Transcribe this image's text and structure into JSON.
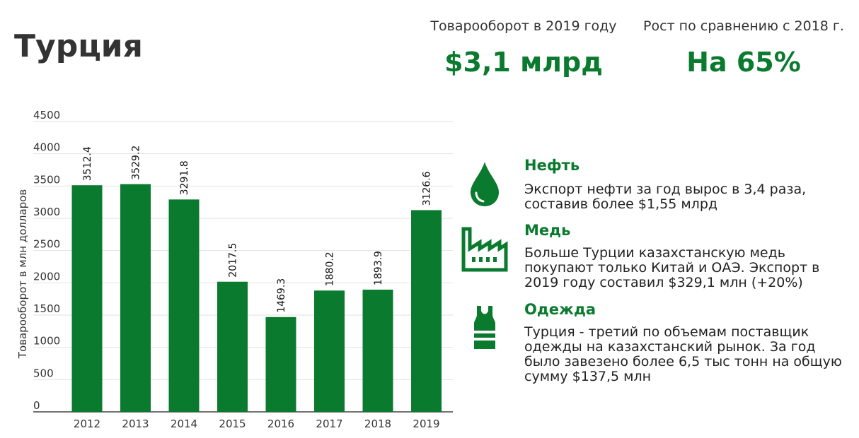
{
  "title": "Турция",
  "stats": [
    {
      "label": "Товарооборот в 2019 году",
      "value": "$3,1 млрд"
    },
    {
      "label": "Рост по сравнению с 2018 г.",
      "value": "На 65%"
    }
  ],
  "colors": {
    "accent": "#0a7a2e",
    "bar": "#0a7a2e"
  },
  "items": [
    {
      "icon": "oil-drop-icon",
      "title": "Нефть",
      "text": "Экспорт нефти за год вырос в 3,4 раза, составив более $1,55 млрд"
    },
    {
      "icon": "factory-icon",
      "title": "Медь",
      "text": "Больше Турции казахстанскую медь покупают только Китай и ОАЭ. Экспорт в 2019 году составил $329,1 млн (+20%)"
    },
    {
      "icon": "garment-icon",
      "title": "Одежда",
      "text": "Турция - третий по объемам поставщик одежды на казахстанский рынок. За год было завезено более 6,5 тыс тонн на общую сумму $137,5 млн"
    }
  ],
  "chart_data": {
    "type": "bar",
    "categories": [
      "2012",
      "2013",
      "2014",
      "2015",
      "2016",
      "2017",
      "2018",
      "2019"
    ],
    "values": [
      3512.4,
      3529.2,
      3291.8,
      2017.5,
      1469.3,
      1880.2,
      1893.9,
      3126.6
    ],
    "value_labels": [
      "3512.4",
      "3529.2",
      "3291.8",
      "2017.5",
      "1469.3",
      "1880.2",
      "1893.9",
      "3126.6"
    ],
    "ylabel": "Товарооборот в млн долларов",
    "xlabel": "",
    "ylim": [
      0,
      4500
    ],
    "yticks": [
      "0",
      "500",
      "1000",
      "1500",
      "2000",
      "2500",
      "3000",
      "3500",
      "4000",
      "4500"
    ],
    "grid": true,
    "legend": "none"
  }
}
